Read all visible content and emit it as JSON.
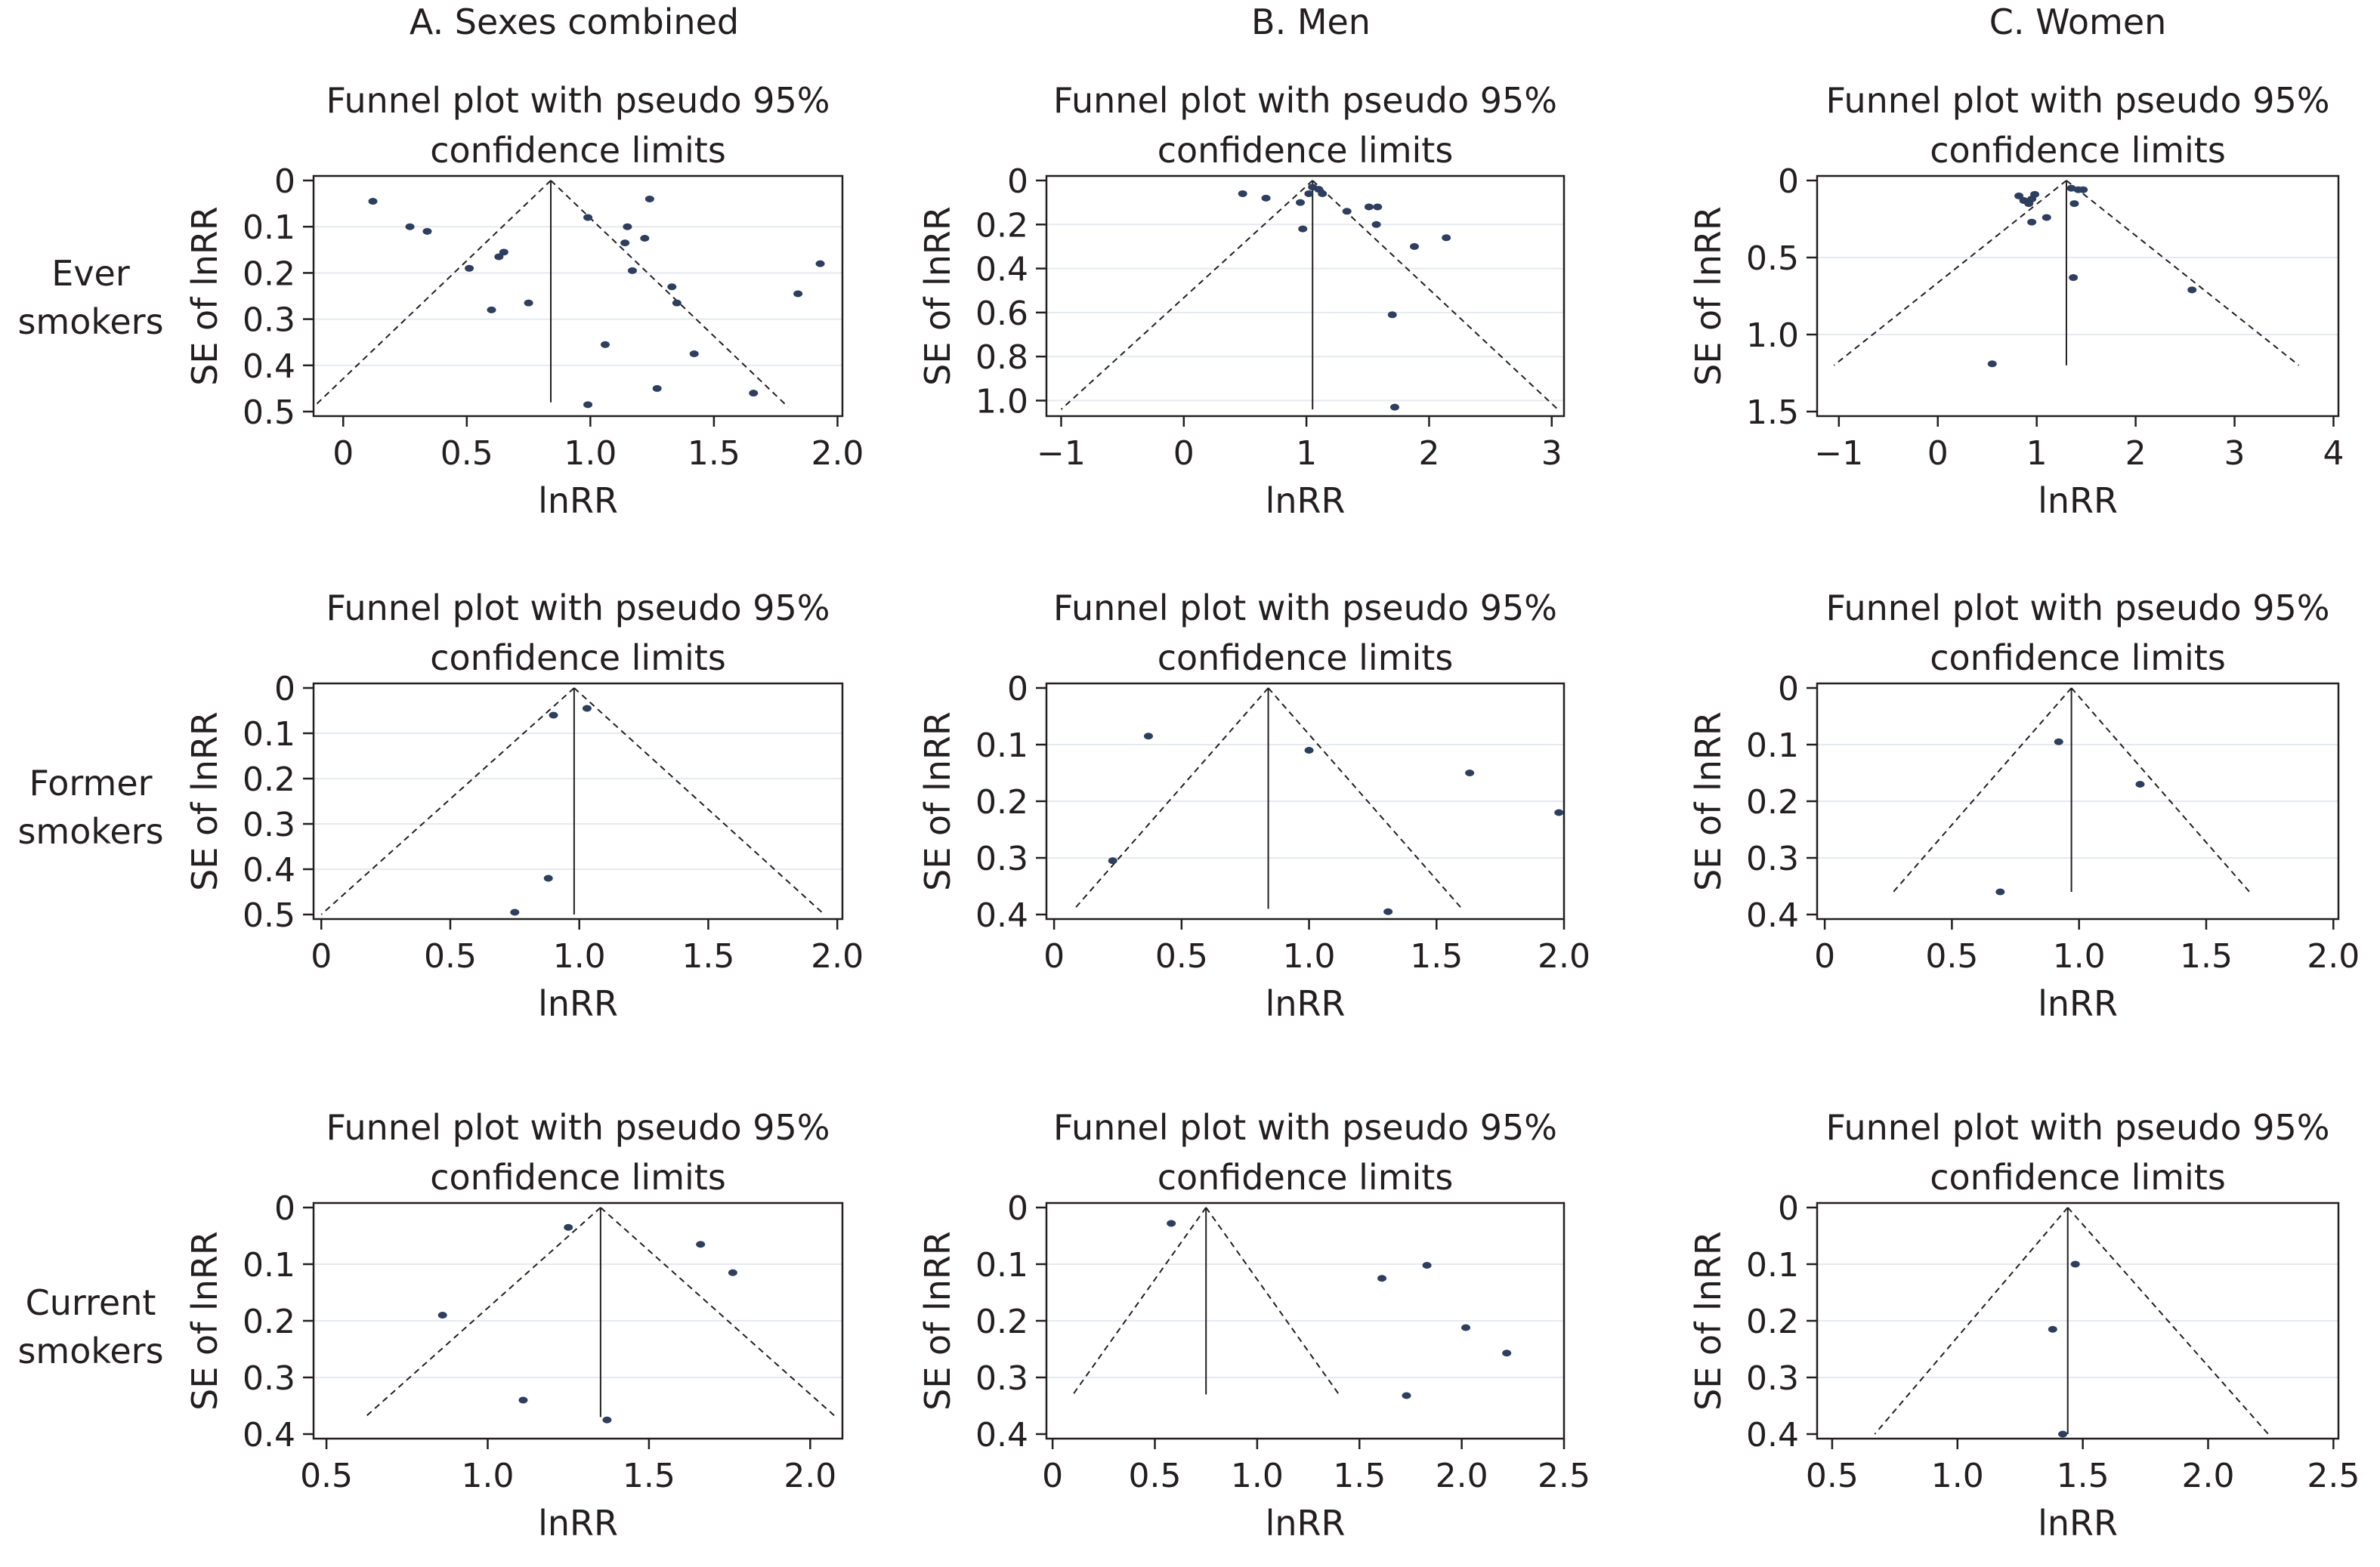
{
  "columns": [
    "A. Sexes combined",
    "B. Men",
    "C. Women"
  ],
  "rows": [
    "Ever smokers",
    "Former smokers",
    "Current smokers"
  ],
  "chart_data": [
    {
      "type": "scatter",
      "panel": "ever-combined",
      "title": "Funnel plot with pseudo 95% confidence limits",
      "xlabel": "lnRR",
      "ylabel": "SE of lnRR",
      "xlim": [
        -0.12,
        2.02
      ],
      "ylim": [
        0,
        0.5
      ],
      "y_reversed": true,
      "xticks": [
        0,
        0.5,
        1.0,
        1.5,
        2.0
      ],
      "xtick_labels": [
        "0",
        "0.5",
        "1.0",
        "1.5",
        "2.0"
      ],
      "yticks": [
        0,
        0.1,
        0.2,
        0.3,
        0.4,
        0.5
      ],
      "ytick_labels": [
        "0",
        "0.1",
        "0.2",
        "0.3",
        "0.4",
        "0.5"
      ],
      "pooled_estimate": 0.84,
      "funnel": {
        "apex": [
          0.84,
          0
        ],
        "bottom_left": [
          -0.12,
          0.49
        ],
        "bottom_right": [
          1.8,
          0.49
        ],
        "center_bottom": 0.48
      },
      "points": [
        [
          0.12,
          0.045
        ],
        [
          0.27,
          0.1
        ],
        [
          0.34,
          0.11
        ],
        [
          0.51,
          0.19
        ],
        [
          0.6,
          0.28
        ],
        [
          0.63,
          0.165
        ],
        [
          0.65,
          0.155
        ],
        [
          0.75,
          0.265
        ],
        [
          0.99,
          0.08
        ],
        [
          1.06,
          0.355
        ],
        [
          1.14,
          0.135
        ],
        [
          1.15,
          0.1
        ],
        [
          1.17,
          0.195
        ],
        [
          1.22,
          0.125
        ],
        [
          1.24,
          0.04
        ],
        [
          1.27,
          0.45
        ],
        [
          1.33,
          0.23
        ],
        [
          1.35,
          0.265
        ],
        [
          1.42,
          0.375
        ],
        [
          1.66,
          0.46
        ],
        [
          1.84,
          0.245
        ],
        [
          1.93,
          0.18
        ],
        [
          0.99,
          0.485
        ]
      ]
    },
    {
      "type": "scatter",
      "panel": "ever-men",
      "title": "Funnel plot with pseudo 95% confidence limits",
      "xlabel": "lnRR",
      "ylabel": "SE of lnRR",
      "xlim": [
        -1.12,
        3.1
      ],
      "ylim": [
        0,
        1.05
      ],
      "y_reversed": true,
      "xticks": [
        -1,
        0,
        1,
        2,
        3
      ],
      "xtick_labels": [
        "−1",
        "0",
        "1",
        "2",
        "3"
      ],
      "yticks": [
        0,
        0.2,
        0.4,
        0.6,
        0.8,
        1.0
      ],
      "ytick_labels": [
        "0",
        "0.2",
        "0.4",
        "0.6",
        "0.8",
        "1.0"
      ],
      "pooled_estimate": 1.05,
      "funnel": {
        "apex": [
          1.05,
          0
        ],
        "bottom_left": [
          -1.0,
          1.04
        ],
        "bottom_right": [
          3.05,
          1.04
        ],
        "center_bottom": 1.04
      },
      "points": [
        [
          0.48,
          0.06
        ],
        [
          0.67,
          0.08
        ],
        [
          0.95,
          0.1
        ],
        [
          0.97,
          0.22
        ],
        [
          1.02,
          0.06
        ],
        [
          1.05,
          0.03
        ],
        [
          1.1,
          0.04
        ],
        [
          1.13,
          0.06
        ],
        [
          1.33,
          0.14
        ],
        [
          1.51,
          0.12
        ],
        [
          1.58,
          0.12
        ],
        [
          1.57,
          0.2
        ],
        [
          1.7,
          0.61
        ],
        [
          1.72,
          1.03
        ],
        [
          1.88,
          0.3
        ],
        [
          2.14,
          0.26
        ]
      ]
    },
    {
      "type": "scatter",
      "panel": "ever-women",
      "title": "Funnel plot with pseudo 95% confidence limits",
      "xlabel": "lnRR",
      "ylabel": "SE of lnRR",
      "xlim": [
        -1.22,
        4.05
      ],
      "ylim": [
        0,
        1.5
      ],
      "y_reversed": true,
      "xticks": [
        -1,
        0,
        1,
        2,
        3,
        4
      ],
      "xtick_labels": [
        "−1",
        "0",
        "1",
        "2",
        "3",
        "4"
      ],
      "yticks": [
        0,
        0.5,
        1.0,
        1.5
      ],
      "ytick_labels": [
        "0",
        "0.5",
        "1.0",
        "1.5"
      ],
      "pooled_estimate": 1.3,
      "funnel": {
        "apex": [
          1.3,
          0
        ],
        "bottom_left": [
          -1.05,
          1.2
        ],
        "bottom_right": [
          3.65,
          1.2
        ],
        "center_bottom": 1.2
      },
      "points": [
        [
          0.82,
          0.1
        ],
        [
          0.87,
          0.13
        ],
        [
          0.92,
          0.15
        ],
        [
          0.95,
          0.12
        ],
        [
          0.98,
          0.09
        ],
        [
          0.95,
          0.27
        ],
        [
          1.1,
          0.24
        ],
        [
          1.35,
          0.05
        ],
        [
          1.38,
          0.15
        ],
        [
          1.42,
          0.06
        ],
        [
          1.47,
          0.06
        ],
        [
          1.37,
          0.63
        ],
        [
          2.57,
          0.71
        ],
        [
          0.55,
          1.19
        ]
      ]
    },
    {
      "type": "scatter",
      "panel": "former-combined",
      "title": "Funnel plot with pseudo 95% confidence limits",
      "xlabel": "lnRR",
      "ylabel": "SE of lnRR",
      "xlim": [
        -0.03,
        2.02
      ],
      "ylim": [
        0,
        0.5
      ],
      "y_reversed": true,
      "xticks": [
        0,
        0.5,
        1.0,
        1.5,
        2.0
      ],
      "xtick_labels": [
        "0",
        "0.5",
        "1.0",
        "1.5",
        "2.0"
      ],
      "yticks": [
        0,
        0.1,
        0.2,
        0.3,
        0.4,
        0.5
      ],
      "ytick_labels": [
        "0",
        "0.1",
        "0.2",
        "0.3",
        "0.4",
        "0.5"
      ],
      "pooled_estimate": 0.98,
      "funnel": {
        "apex": [
          0.98,
          0
        ],
        "bottom_left": [
          0.0,
          0.5
        ],
        "bottom_right": [
          1.95,
          0.5
        ],
        "center_bottom": 0.5
      },
      "points": [
        [
          0.9,
          0.06
        ],
        [
          1.03,
          0.045
        ],
        [
          0.88,
          0.42
        ],
        [
          0.75,
          0.495
        ]
      ]
    },
    {
      "type": "scatter",
      "panel": "former-men",
      "title": "Funnel plot with pseudo 95% confidence limits",
      "xlabel": "lnRR",
      "ylabel": "SE of lnRR",
      "xlim": [
        -0.03,
        2.0
      ],
      "ylim": [
        0,
        0.4
      ],
      "y_reversed": true,
      "xticks": [
        0,
        0.5,
        1.0,
        1.5,
        2.0
      ],
      "xtick_labels": [
        "0",
        "0.5",
        "1.0",
        "1.5",
        "2.0"
      ],
      "yticks": [
        0,
        0.1,
        0.2,
        0.3,
        0.4
      ],
      "ytick_labels": [
        "0",
        "0.1",
        "0.2",
        "0.3",
        "0.4"
      ],
      "pooled_estimate": 0.84,
      "funnel": {
        "apex": [
          0.84,
          0
        ],
        "bottom_left": [
          0.08,
          0.39
        ],
        "bottom_right": [
          1.6,
          0.39
        ],
        "center_bottom": 0.39
      },
      "points": [
        [
          0.37,
          0.085
        ],
        [
          0.23,
          0.305
        ],
        [
          1.0,
          0.11
        ],
        [
          1.63,
          0.15
        ],
        [
          1.98,
          0.22
        ],
        [
          1.31,
          0.395
        ]
      ]
    },
    {
      "type": "scatter",
      "panel": "former-women",
      "title": "Funnel plot with pseudo 95% confidence limits",
      "xlabel": "lnRR",
      "ylabel": "SE of lnRR",
      "xlim": [
        -0.03,
        2.02
      ],
      "ylim": [
        0,
        0.4
      ],
      "y_reversed": true,
      "xticks": [
        0,
        0.5,
        1.0,
        1.5,
        2.0
      ],
      "xtick_labels": [
        "0",
        "0.5",
        "1.0",
        "1.5",
        "2.0"
      ],
      "yticks": [
        0,
        0.1,
        0.2,
        0.3,
        0.4
      ],
      "ytick_labels": [
        "0",
        "0.1",
        "0.2",
        "0.3",
        "0.4"
      ],
      "pooled_estimate": 0.97,
      "funnel": {
        "apex": [
          0.97,
          0
        ],
        "bottom_left": [
          0.27,
          0.36
        ],
        "bottom_right": [
          1.67,
          0.36
        ],
        "center_bottom": 0.36
      },
      "points": [
        [
          0.92,
          0.095
        ],
        [
          1.24,
          0.17
        ],
        [
          0.69,
          0.36
        ]
      ]
    },
    {
      "type": "scatter",
      "panel": "current-combined",
      "title": "Funnel plot with pseudo 95% confidence limits",
      "xlabel": "lnRR",
      "ylabel": "SE of lnRR",
      "xlim": [
        0.46,
        2.1
      ],
      "ylim": [
        0,
        0.4
      ],
      "y_reversed": true,
      "xticks": [
        0.5,
        1.0,
        1.5,
        2.0
      ],
      "xtick_labels": [
        "0.5",
        "1.0",
        "1.5",
        "2.0"
      ],
      "yticks": [
        0,
        0.1,
        0.2,
        0.3,
        0.4
      ],
      "ytick_labels": [
        "0",
        "0.1",
        "0.2",
        "0.3",
        "0.4"
      ],
      "pooled_estimate": 1.35,
      "funnel": {
        "apex": [
          1.35,
          0
        ],
        "bottom_left": [
          0.62,
          0.37
        ],
        "bottom_right": [
          2.08,
          0.37
        ],
        "center_bottom": 0.37
      },
      "points": [
        [
          1.25,
          0.035
        ],
        [
          1.66,
          0.065
        ],
        [
          1.76,
          0.115
        ],
        [
          0.86,
          0.19
        ],
        [
          1.11,
          0.34
        ],
        [
          1.37,
          0.375
        ]
      ]
    },
    {
      "type": "scatter",
      "panel": "current-men",
      "title": "Funnel plot with pseudo 95% confidence limits",
      "xlabel": "lnRR",
      "ylabel": "SE of lnRR",
      "xlim": [
        -0.03,
        2.5
      ],
      "ylim": [
        0,
        0.4
      ],
      "y_reversed": true,
      "xticks": [
        0,
        0.5,
        1.0,
        1.5,
        2.0,
        2.5
      ],
      "xtick_labels": [
        "0",
        "0.5",
        "1.0",
        "1.5",
        "2.0",
        "2.5"
      ],
      "yticks": [
        0,
        0.1,
        0.2,
        0.3,
        0.4
      ],
      "ytick_labels": [
        "0",
        "0.1",
        "0.2",
        "0.3",
        "0.4"
      ],
      "pooled_estimate": 0.75,
      "funnel": {
        "apex": [
          0.75,
          0
        ],
        "bottom_left": [
          0.1,
          0.33
        ],
        "bottom_right": [
          1.4,
          0.33
        ],
        "center_bottom": 0.33
      },
      "points": [
        [
          0.58,
          0.028
        ],
        [
          1.61,
          0.125
        ],
        [
          1.83,
          0.102
        ],
        [
          2.02,
          0.212
        ],
        [
          2.22,
          0.257
        ],
        [
          1.73,
          0.332
        ]
      ]
    },
    {
      "type": "scatter",
      "panel": "current-women",
      "title": "Funnel plot with pseudo 95% confidence limits",
      "xlabel": "lnRR",
      "ylabel": "SE of lnRR",
      "xlim": [
        0.44,
        2.52
      ],
      "ylim": [
        0,
        0.4
      ],
      "y_reversed": true,
      "xticks": [
        0.5,
        1.0,
        1.5,
        2.0,
        2.5
      ],
      "xtick_labels": [
        "0.5",
        "1.0",
        "1.5",
        "2.0",
        "2.5"
      ],
      "yticks": [
        0,
        0.1,
        0.2,
        0.3,
        0.4
      ],
      "ytick_labels": [
        "0",
        "0.1",
        "0.2",
        "0.3",
        "0.4"
      ],
      "pooled_estimate": 1.44,
      "funnel": {
        "apex": [
          1.44,
          0
        ],
        "bottom_left": [
          0.67,
          0.4
        ],
        "bottom_right": [
          2.24,
          0.4
        ],
        "center_bottom": 0.4
      },
      "points": [
        [
          1.47,
          0.1
        ],
        [
          1.38,
          0.215
        ],
        [
          1.42,
          0.4
        ]
      ]
    }
  ]
}
